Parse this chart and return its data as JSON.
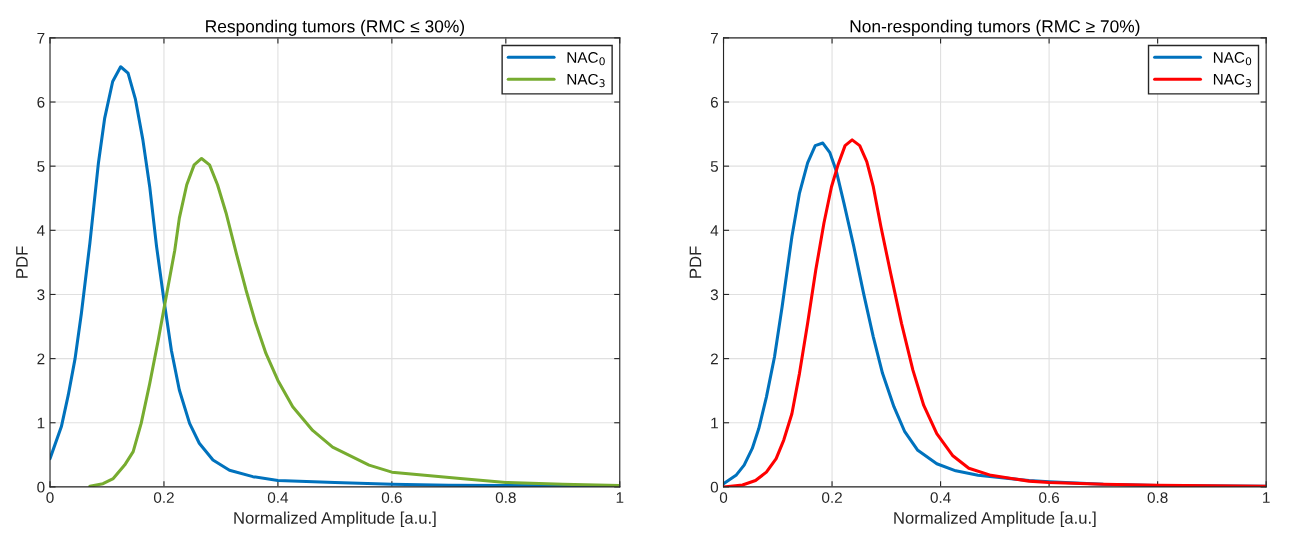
{
  "chart_data": [
    {
      "type": "line",
      "title": "Responding tumors (RMC ≤ 30%)",
      "xlabel": "Normalized Amplitude [a.u.]",
      "ylabel": "PDF",
      "xlim": [
        0,
        1
      ],
      "ylim": [
        0,
        7
      ],
      "xticks": [
        0,
        0.2,
        0.4,
        0.6,
        0.8,
        1
      ],
      "yticks": [
        0,
        1,
        2,
        3,
        4,
        5,
        6,
        7
      ],
      "grid": true,
      "legend": "top right",
      "series": [
        {
          "name": "NAC$_{0}$",
          "color": "#0072bd",
          "x": [
            0,
            0.02,
            0.032,
            0.044,
            0.055,
            0.07,
            0.085,
            0.096,
            0.11,
            0.124,
            0.137,
            0.15,
            0.163,
            0.175,
            0.187,
            0.2,
            0.213,
            0.227,
            0.245,
            0.262,
            0.286,
            0.315,
            0.356,
            0.4,
            0.5,
            0.6,
            0.7,
            0.8,
            1
          ],
          "values": [
            0.44,
            0.94,
            1.43,
            2.0,
            2.7,
            3.8,
            5.05,
            5.75,
            6.32,
            6.55,
            6.45,
            6.04,
            5.41,
            4.68,
            3.75,
            2.91,
            2.13,
            1.51,
            0.99,
            0.68,
            0.42,
            0.26,
            0.16,
            0.1,
            0.07,
            0.04,
            0.025,
            0.02,
            0.01
          ]
        },
        {
          "name": "NAC$_{3}$",
          "color": "#77ac30",
          "x": [
            0.07,
            0.093,
            0.111,
            0.131,
            0.146,
            0.16,
            0.175,
            0.19,
            0.204,
            0.219,
            0.227,
            0.24,
            0.253,
            0.266,
            0.28,
            0.294,
            0.309,
            0.327,
            0.344,
            0.361,
            0.379,
            0.4,
            0.426,
            0.461,
            0.496,
            0.56,
            0.6,
            0.72,
            0.8,
            0.9,
            1
          ],
          "values": [
            0.01,
            0.05,
            0.13,
            0.34,
            0.55,
            0.99,
            1.61,
            2.29,
            2.97,
            3.69,
            4.19,
            4.71,
            5.02,
            5.12,
            5.02,
            4.71,
            4.27,
            3.64,
            3.07,
            2.55,
            2.08,
            1.66,
            1.25,
            0.88,
            0.62,
            0.34,
            0.23,
            0.13,
            0.07,
            0.04,
            0.02
          ]
        }
      ]
    },
    {
      "type": "line",
      "title": "Non-responding tumors (RMC ≥ 70%)",
      "xlabel": "Normalized Amplitude [a.u.]",
      "ylabel": "PDF",
      "xlim": [
        0,
        1
      ],
      "ylim": [
        0,
        7
      ],
      "xticks": [
        0,
        0.2,
        0.4,
        0.6,
        0.8,
        1
      ],
      "yticks": [
        0,
        1,
        2,
        3,
        4,
        5,
        6,
        7
      ],
      "grid": true,
      "legend": "top right",
      "series": [
        {
          "name": "NAC$_{0}$",
          "color": "#0072bd",
          "x": [
            0,
            0.023,
            0.038,
            0.053,
            0.065,
            0.079,
            0.094,
            0.108,
            0.126,
            0.14,
            0.155,
            0.169,
            0.183,
            0.196,
            0.208,
            0.222,
            0.24,
            0.258,
            0.276,
            0.293,
            0.314,
            0.334,
            0.358,
            0.393,
            0.428,
            0.469,
            0.563,
            0.6,
            0.7,
            0.8,
            1
          ],
          "values": [
            0.05,
            0.18,
            0.34,
            0.6,
            0.91,
            1.4,
            2.03,
            2.81,
            3.9,
            4.58,
            5.05,
            5.32,
            5.36,
            5.21,
            4.92,
            4.42,
            3.75,
            3.02,
            2.34,
            1.77,
            1.25,
            0.86,
            0.57,
            0.36,
            0.25,
            0.18,
            0.1,
            0.08,
            0.04,
            0.02,
            0.01
          ]
        },
        {
          "name": "NAC$_{3}$",
          "color": "#ff0000",
          "x": [
            0,
            0.035,
            0.059,
            0.079,
            0.097,
            0.111,
            0.126,
            0.14,
            0.155,
            0.17,
            0.185,
            0.199,
            0.211,
            0.224,
            0.237,
            0.251,
            0.264,
            0.276,
            0.29,
            0.308,
            0.328,
            0.349,
            0.369,
            0.393,
            0.422,
            0.452,
            0.493,
            0.563,
            0.6,
            0.7,
            0.8,
            1
          ],
          "values": [
            0.0,
            0.03,
            0.1,
            0.23,
            0.44,
            0.73,
            1.14,
            1.77,
            2.55,
            3.38,
            4.11,
            4.68,
            5.02,
            5.32,
            5.41,
            5.32,
            5.07,
            4.68,
            4.06,
            3.33,
            2.55,
            1.82,
            1.27,
            0.83,
            0.49,
            0.29,
            0.18,
            0.09,
            0.07,
            0.04,
            0.025,
            0.01
          ]
        }
      ]
    }
  ]
}
